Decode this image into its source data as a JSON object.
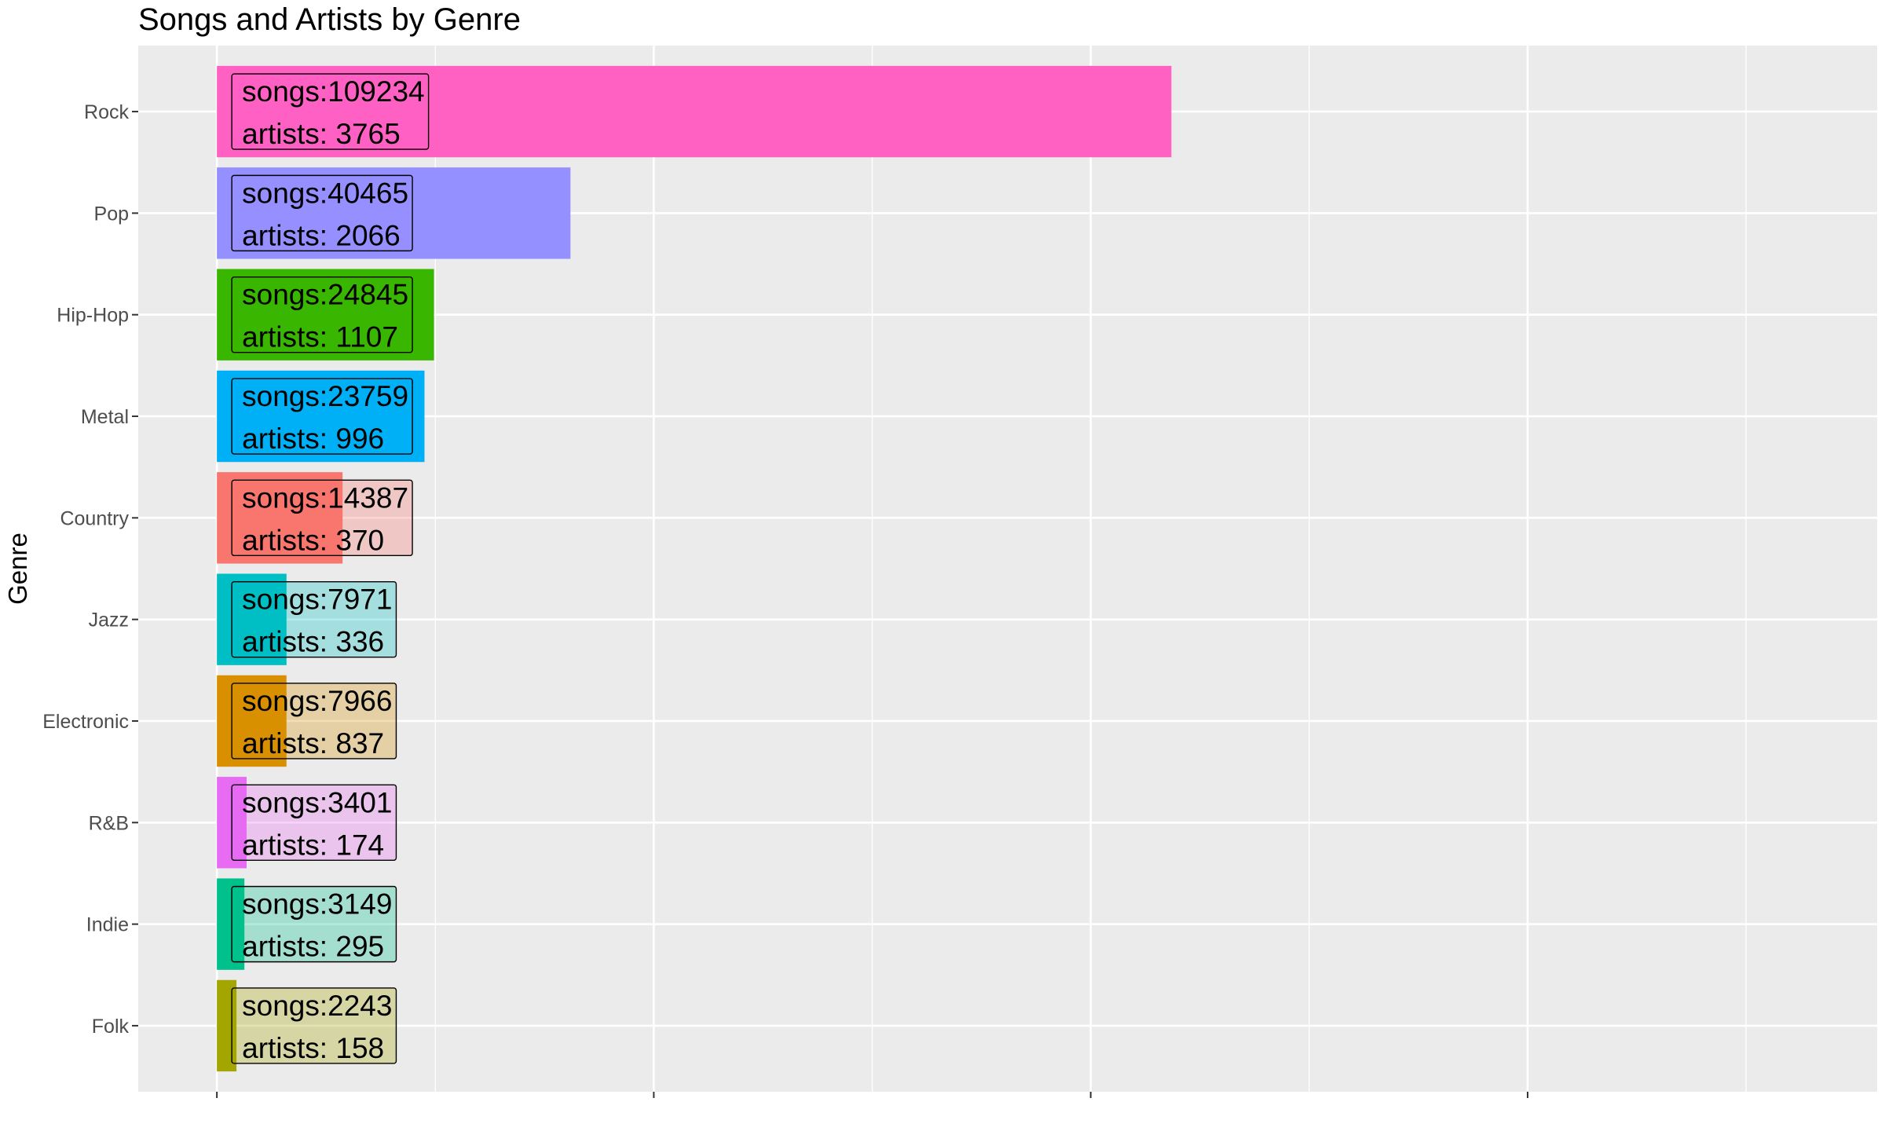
{
  "chart_data": {
    "type": "bar",
    "orientation": "horizontal",
    "title": "Songs and Artists by Genre",
    "xlabel": "",
    "ylabel": "Genre",
    "xlim": [
      -9000,
      190000
    ],
    "grid": true,
    "legend": "none",
    "categories": [
      "Rock",
      "Pop",
      "Hip-Hop",
      "Metal",
      "Country",
      "Jazz",
      "Electronic",
      "R&B",
      "Indie",
      "Folk"
    ],
    "values": [
      109234,
      40465,
      24845,
      23759,
      14387,
      7971,
      7966,
      3401,
      3149,
      2243
    ],
    "artists": [
      3765,
      2066,
      1107,
      996,
      370,
      336,
      837,
      174,
      295,
      158
    ],
    "colors": [
      "#FF61C3",
      "#9590FF",
      "#39B600",
      "#00B0F6",
      "#F8766D",
      "#00BFC4",
      "#D89000",
      "#E76BF3",
      "#00C08B",
      "#A3A500"
    ],
    "label_texts": [
      [
        "songs:109234",
        "artists: 3765"
      ],
      [
        "songs:40465",
        "artists: 2066"
      ],
      [
        "songs:24845",
        "artists: 1107"
      ],
      [
        "songs:23759",
        "artists: 996"
      ],
      [
        "songs:14387",
        "artists: 370"
      ],
      [
        "songs:7971",
        "artists: 336"
      ],
      [
        "songs:7966",
        "artists: 837"
      ],
      [
        "songs:3401",
        "artists: 174"
      ],
      [
        "songs:3149",
        "artists: 295"
      ],
      [
        "songs:2243",
        "artists: 158"
      ]
    ]
  }
}
